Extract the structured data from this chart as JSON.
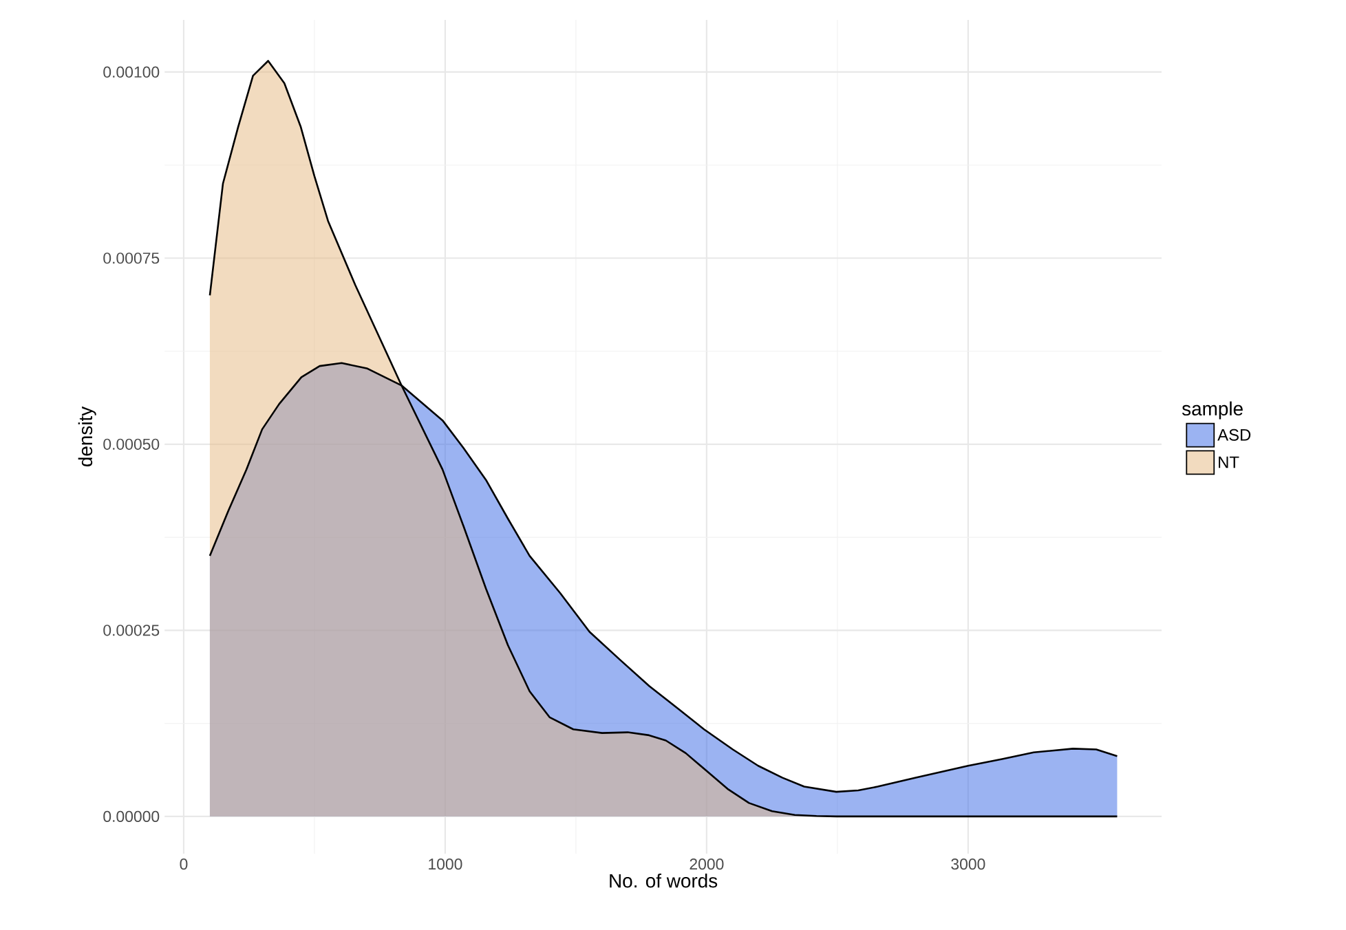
{
  "chart_data": {
    "type": "area",
    "xlabel": "No. of words",
    "ylabel": "density",
    "legend_title": "sample",
    "legend": "right",
    "grid": true,
    "xlim": [
      -73,
      3740
    ],
    "ylim": [
      -5e-05,
      0.00107
    ],
    "xticks": [
      0,
      1000,
      2000,
      3000
    ],
    "yticks": [
      {
        "value": 0,
        "label": "0.00000"
      },
      {
        "value": 0.00025,
        "label": "0.00025"
      },
      {
        "value": 0.0005,
        "label": "0.00050"
      },
      {
        "value": 0.00075,
        "label": "0.00075"
      },
      {
        "value": 0.001,
        "label": "0.00100"
      }
    ],
    "series": [
      {
        "name": "ASD",
        "color": "#9bb3f2",
        "x": [
          100,
          170,
          240,
          300,
          365,
          450,
          520,
          604,
          700,
          833,
          990,
          1070,
          1156,
          1240,
          1323,
          1440,
          1552,
          1670,
          1781,
          1890,
          1990,
          2100,
          2197,
          2290,
          2373,
          2496,
          2580,
          2654,
          2800,
          3000,
          3130,
          3251,
          3401,
          3490,
          3570
        ],
        "values": [
          0.00035,
          0.00041,
          0.000466,
          0.00052,
          0.000554,
          0.00059,
          0.000605,
          0.000609,
          0.000602,
          0.000579,
          0.000532,
          0.000495,
          0.000452,
          0.0004,
          0.00035,
          0.0003,
          0.000248,
          0.00021,
          0.000175,
          0.000145,
          0.000117,
          9e-05,
          6.8e-05,
          5.2e-05,
          4e-05,
          3.3e-05,
          3.5e-05,
          4e-05,
          5.2e-05,
          6.8e-05,
          7.7e-05,
          8.6e-05,
          9.1e-05,
          9e-05,
          8.1e-05
        ]
      },
      {
        "name": "NT",
        "color": "#f2dbbf",
        "x": [
          100,
          150,
          208,
          265,
          323,
          385,
          448,
          500,
          552,
          656,
          740,
          833,
          990,
          1070,
          1156,
          1240,
          1323,
          1400,
          1490,
          1600,
          1698,
          1780,
          1844,
          1920,
          2000,
          2080,
          2162,
          2250,
          2337,
          2420,
          2496,
          3000,
          3570
        ],
        "values": [
          0.0007,
          0.00085,
          0.000926,
          0.000995,
          0.001015,
          0.000985,
          0.000926,
          0.00086,
          0.0008,
          0.000714,
          0.00065,
          0.000579,
          0.000466,
          0.00039,
          0.000306,
          0.00023,
          0.000168,
          0.000133,
          0.000117,
          0.000112,
          0.000113,
          0.000109,
          0.000102,
          8.5e-05,
          6.1e-05,
          3.7e-05,
          1.8e-05,
          7e-06,
          2e-06,
          5e-07,
          0,
          0,
          0
        ]
      }
    ]
  }
}
